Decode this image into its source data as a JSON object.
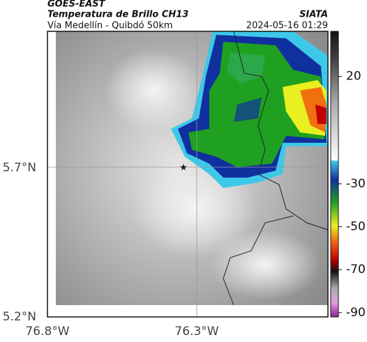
{
  "header": {
    "title": "GOES-EAST",
    "subtitle": "Temperatura de Brillo CH13",
    "location": "Vía Medellín - Quibdó 50km",
    "source": "SIATA",
    "timestamp": "2024-05-16 01:29"
  },
  "axes": {
    "lat_labels": [
      "5.7°N",
      "5.2°N"
    ],
    "lon_labels": [
      "76.8°W",
      "76.3°W"
    ]
  },
  "colorbar": {
    "lim": [
      -92,
      41
    ],
    "ticks": [
      20,
      -30,
      -50,
      -70,
      -90
    ]
  }
}
